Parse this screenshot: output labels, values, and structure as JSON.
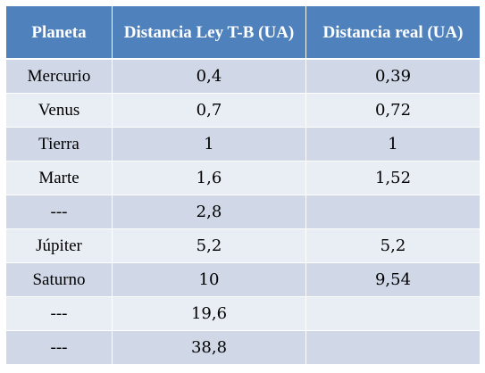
{
  "table": {
    "headers": {
      "planet": "Planeta",
      "tb_distance": "Distancia Ley T-B (UA)",
      "real_distance": "Distancia real (UA)"
    },
    "rows": [
      {
        "planet": "Mercurio",
        "tb": "0,4",
        "real": "0,39"
      },
      {
        "planet": "Venus",
        "tb": "0,7",
        "real": "0,72"
      },
      {
        "planet": "Tierra",
        "tb": "1",
        "real": "1"
      },
      {
        "planet": "Marte",
        "tb": "1,6",
        "real": "1,52"
      },
      {
        "planet": "---",
        "tb": "2,8",
        "real": ""
      },
      {
        "planet": "Júpiter",
        "tb": "5,2",
        "real": "5,2"
      },
      {
        "planet": "Saturno",
        "tb": "10",
        "real": "9,54"
      },
      {
        "planet": "---",
        "tb": "19,6",
        "real": ""
      },
      {
        "planet": "---",
        "tb": "38,8",
        "real": ""
      }
    ]
  },
  "colors": {
    "header_bg": "#4f81bd",
    "row_odd_bg": "#d0d8e8",
    "row_even_bg": "#e9edf4"
  }
}
